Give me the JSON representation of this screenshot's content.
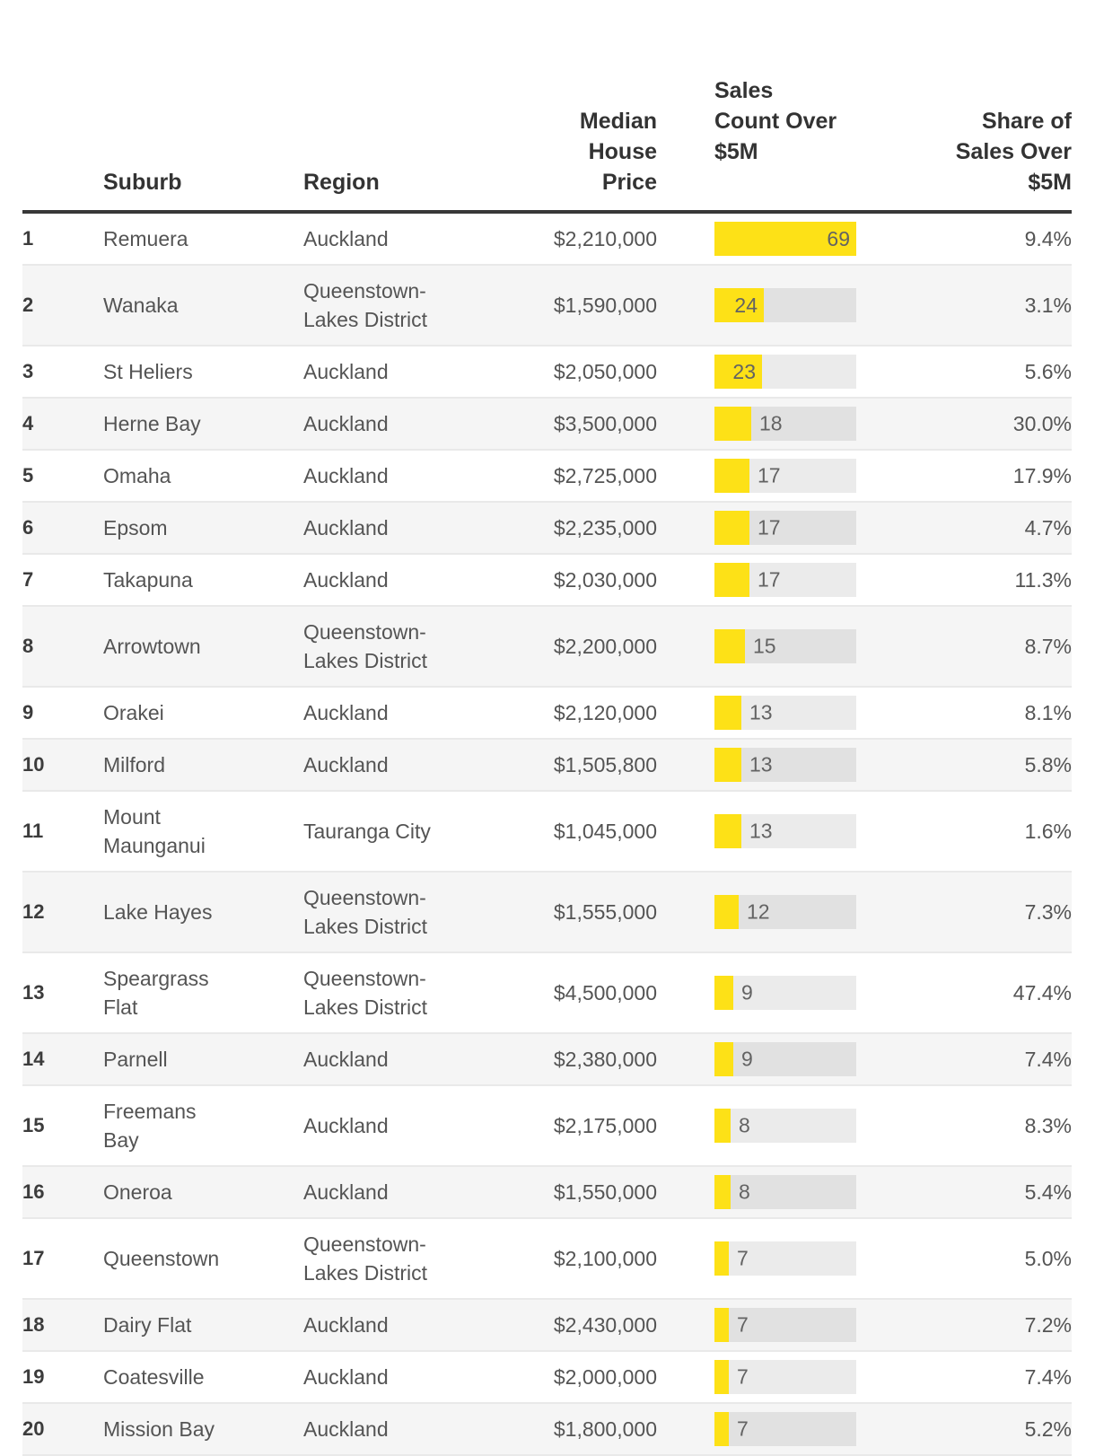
{
  "chart_data": {
    "type": "table",
    "columns": [
      "Suburb",
      "Region",
      "Median House Price",
      "Sales Count Over $5M",
      "Share of Sales Over $5M"
    ],
    "bar_column": "Sales Count Over $5M",
    "bar_max": 69,
    "rows": [
      {
        "rank": "1",
        "suburb": "Remuera",
        "region": "Auckland",
        "median_house_price": "$2,210,000",
        "sales_count_over_5m": 69,
        "share_of_sales_over_5m": "9.4%"
      },
      {
        "rank": "2",
        "suburb": "Wanaka",
        "region": "Queenstown-Lakes District",
        "median_house_price": "$1,590,000",
        "sales_count_over_5m": 24,
        "share_of_sales_over_5m": "3.1%"
      },
      {
        "rank": "3",
        "suburb": "St Heliers",
        "region": "Auckland",
        "median_house_price": "$2,050,000",
        "sales_count_over_5m": 23,
        "share_of_sales_over_5m": "5.6%"
      },
      {
        "rank": "4",
        "suburb": "Herne Bay",
        "region": "Auckland",
        "median_house_price": "$3,500,000",
        "sales_count_over_5m": 18,
        "share_of_sales_over_5m": "30.0%"
      },
      {
        "rank": "5",
        "suburb": "Omaha",
        "region": "Auckland",
        "median_house_price": "$2,725,000",
        "sales_count_over_5m": 17,
        "share_of_sales_over_5m": "17.9%"
      },
      {
        "rank": "6",
        "suburb": "Epsom",
        "region": "Auckland",
        "median_house_price": "$2,235,000",
        "sales_count_over_5m": 17,
        "share_of_sales_over_5m": "4.7%"
      },
      {
        "rank": "7",
        "suburb": "Takapuna",
        "region": "Auckland",
        "median_house_price": "$2,030,000",
        "sales_count_over_5m": 17,
        "share_of_sales_over_5m": "11.3%"
      },
      {
        "rank": "8",
        "suburb": "Arrowtown",
        "region": "Queenstown-Lakes District",
        "median_house_price": "$2,200,000",
        "sales_count_over_5m": 15,
        "share_of_sales_over_5m": "8.7%"
      },
      {
        "rank": "9",
        "suburb": "Orakei",
        "region": "Auckland",
        "median_house_price": "$2,120,000",
        "sales_count_over_5m": 13,
        "share_of_sales_over_5m": "8.1%"
      },
      {
        "rank": "10",
        "suburb": "Milford",
        "region": "Auckland",
        "median_house_price": "$1,505,800",
        "sales_count_over_5m": 13,
        "share_of_sales_over_5m": "5.8%"
      },
      {
        "rank": "11",
        "suburb": "Mount Maunganui",
        "region": "Tauranga City",
        "median_house_price": "$1,045,000",
        "sales_count_over_5m": 13,
        "share_of_sales_over_5m": "1.6%"
      },
      {
        "rank": "12",
        "suburb": "Lake Hayes",
        "region": "Queenstown-Lakes District",
        "median_house_price": "$1,555,000",
        "sales_count_over_5m": 12,
        "share_of_sales_over_5m": "7.3%"
      },
      {
        "rank": "13",
        "suburb": "Speargrass Flat",
        "region": "Queenstown-Lakes District",
        "median_house_price": "$4,500,000",
        "sales_count_over_5m": 9,
        "share_of_sales_over_5m": "47.4%"
      },
      {
        "rank": "14",
        "suburb": "Parnell",
        "region": "Auckland",
        "median_house_price": "$2,380,000",
        "sales_count_over_5m": 9,
        "share_of_sales_over_5m": "7.4%"
      },
      {
        "rank": "15",
        "suburb": "Freemans Bay",
        "region": "Auckland",
        "median_house_price": "$2,175,000",
        "sales_count_over_5m": 8,
        "share_of_sales_over_5m": "8.3%"
      },
      {
        "rank": "16",
        "suburb": "Oneroa",
        "region": "Auckland",
        "median_house_price": "$1,550,000",
        "sales_count_over_5m": 8,
        "share_of_sales_over_5m": "5.4%"
      },
      {
        "rank": "17",
        "suburb": "Queenstown",
        "region": "Queenstown-Lakes District",
        "median_house_price": "$2,100,000",
        "sales_count_over_5m": 7,
        "share_of_sales_over_5m": "5.0%"
      },
      {
        "rank": "18",
        "suburb": "Dairy Flat",
        "region": "Auckland",
        "median_house_price": "$2,430,000",
        "sales_count_over_5m": 7,
        "share_of_sales_over_5m": "7.2%"
      },
      {
        "rank": "19",
        "suburb": "Coatesville",
        "region": "Auckland",
        "median_house_price": "$2,000,000",
        "sales_count_over_5m": 7,
        "share_of_sales_over_5m": "7.4%"
      },
      {
        "rank": "20",
        "suburb": "Mission Bay",
        "region": "Auckland",
        "median_house_price": "$1,800,000",
        "sales_count_over_5m": 7,
        "share_of_sales_over_5m": "5.2%"
      }
    ]
  },
  "display": {
    "headers": {
      "suburb": "Suburb",
      "region": "Region",
      "price": "Median\nHouse\nPrice",
      "count": "Sales\nCount Over\n$5M",
      "share": "Share of\nSales Over\n$5M"
    }
  },
  "colors": {
    "bar_fill": "#fde117",
    "bar_track": "rgba(0,0,0,0.08)",
    "row_alt_background": "#f5f5f5",
    "header_text": "#333333",
    "body_text": "#545454",
    "header_rule": "#383838"
  }
}
